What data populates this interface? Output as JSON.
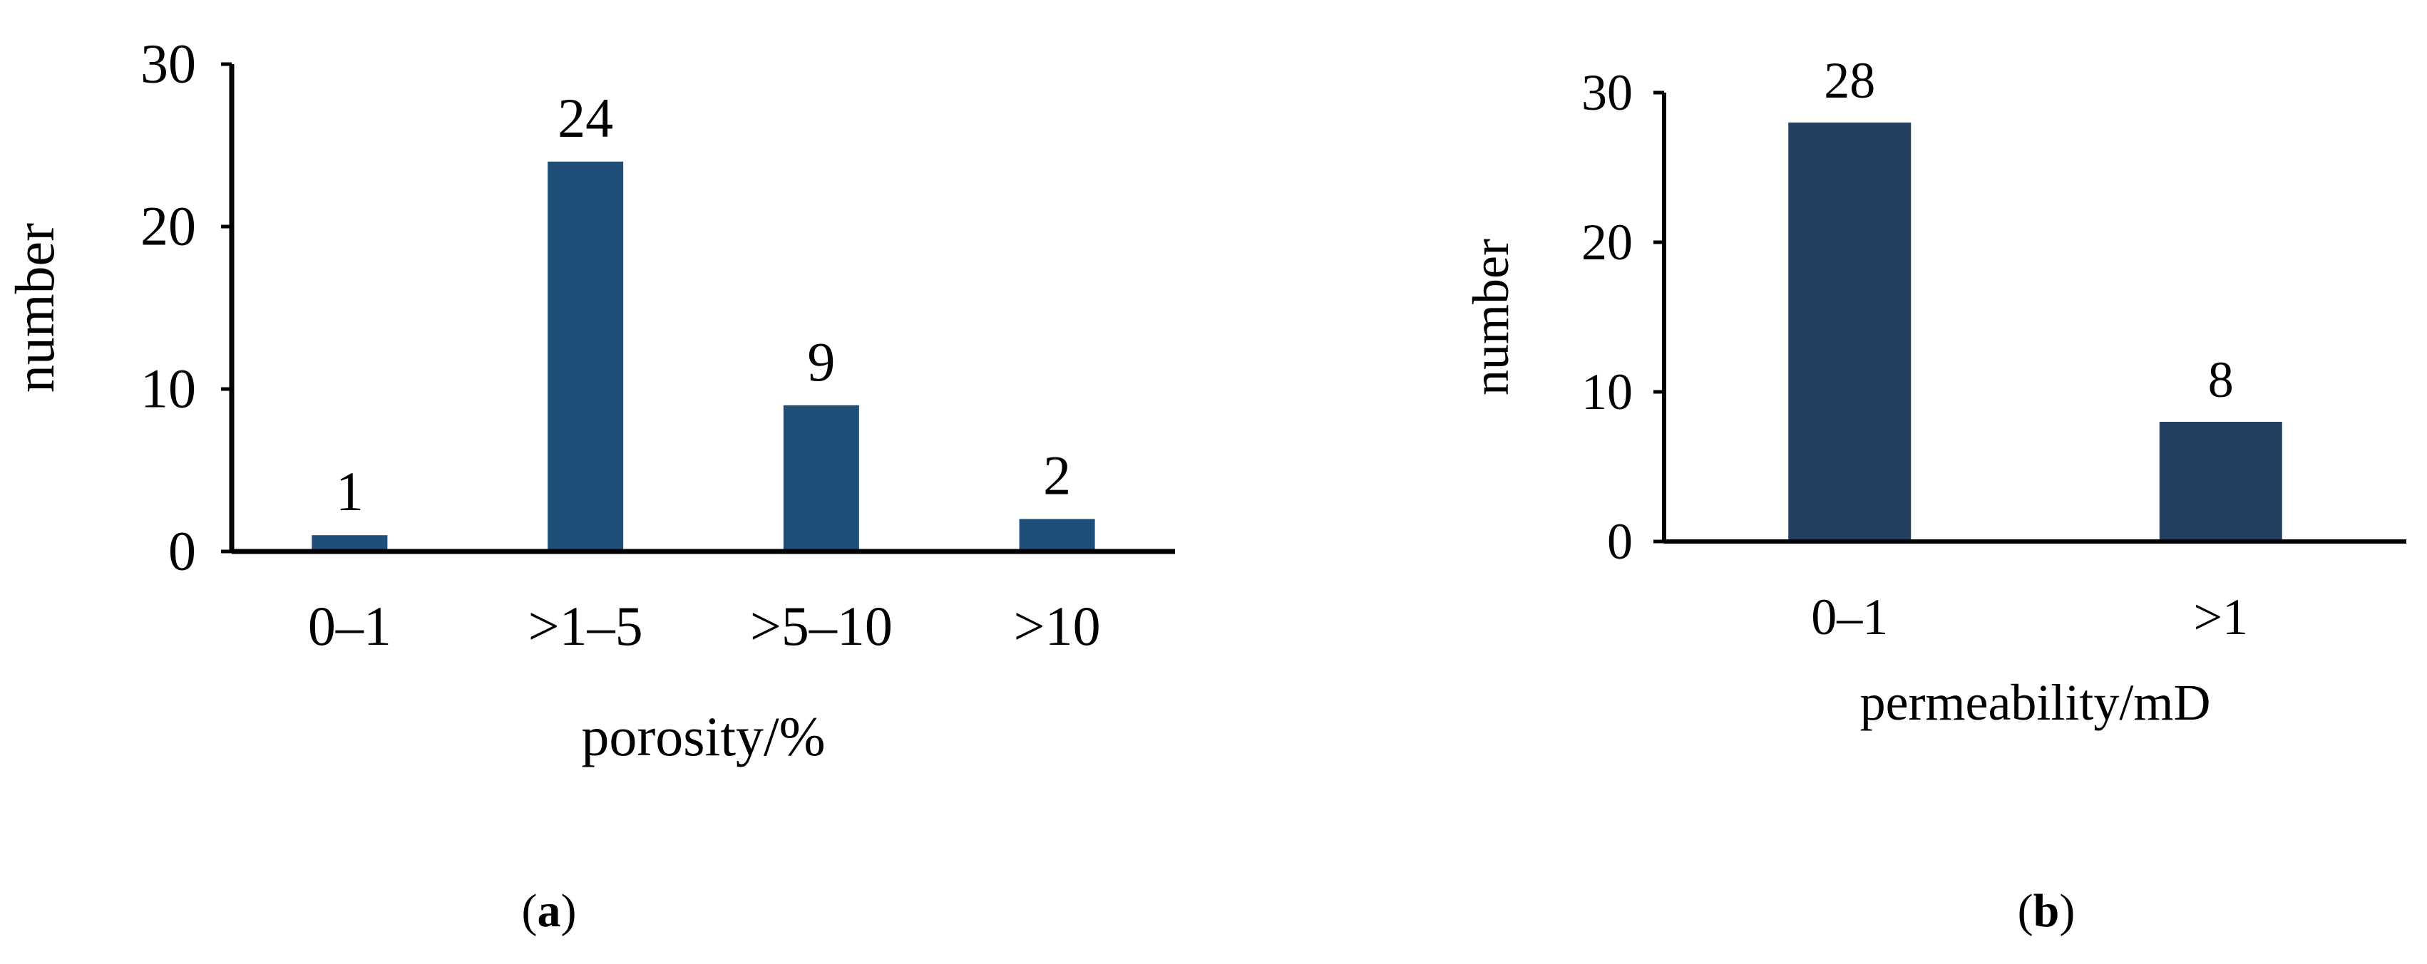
{
  "chart_data": [
    {
      "type": "bar",
      "panel_label": "a",
      "categories": [
        "0–1",
        ">1–5",
        ">5–10",
        ">10"
      ],
      "values": [
        1,
        24,
        9,
        2
      ],
      "data_labels": [
        "1",
        "24",
        "9",
        "2"
      ],
      "xlabel": "porosity/%",
      "ylabel": "number",
      "ylim": [
        0,
        30
      ],
      "yticks": [
        "0",
        "10",
        "20",
        "30"
      ],
      "grid": false,
      "legend": "none",
      "bar_color": "#1f4e79"
    },
    {
      "type": "bar",
      "panel_label": "b",
      "categories": [
        "0–1",
        ">1"
      ],
      "values": [
        28,
        8
      ],
      "data_labels": [
        "28",
        "8"
      ],
      "xlabel": "permeability/mD",
      "ylabel": "number",
      "ylim": [
        0,
        30
      ],
      "yticks": [
        "0",
        "10",
        "20",
        "30"
      ],
      "grid": false,
      "legend": "none",
      "bar_color": "#243f60"
    }
  ]
}
